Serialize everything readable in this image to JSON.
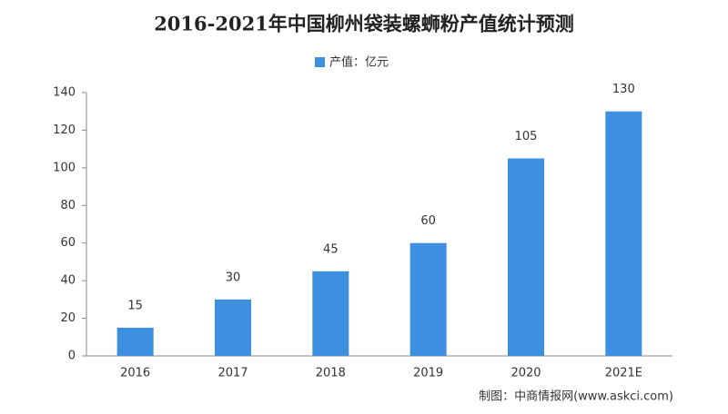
{
  "chart_data": {
    "type": "bar",
    "title": "2016-2021年中国柳州袋装螺蛳粉产值统计预测",
    "categories": [
      "2016",
      "2017",
      "2018",
      "2019",
      "2020",
      "2021E"
    ],
    "series": [
      {
        "name": "产值：亿元",
        "color": "#3d8fe0",
        "values": [
          15,
          30,
          45,
          60,
          105,
          130
        ]
      }
    ],
    "ylim": [
      0,
      140
    ],
    "yticks": [
      0,
      20,
      40,
      60,
      80,
      100,
      120,
      140
    ],
    "grid": false,
    "legend": "top",
    "source": "制图：中商情报网(www.askci.com)"
  }
}
